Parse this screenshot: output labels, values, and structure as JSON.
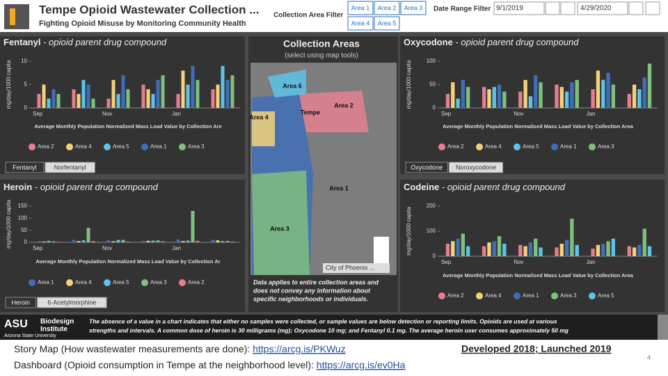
{
  "header": {
    "title": "Tempe Opioid Wastewater Collection ...",
    "subtitle": "Fighting Opioid Misuse by Monitoring Community Health",
    "area_filter_label": "Collection Area Filter",
    "area_buttons": [
      "Area 1",
      "Area 2",
      "Area 3",
      "Area 4",
      "Area 5"
    ],
    "date_filter_label": "Date Range Filter",
    "start_date": "9/1/2019",
    "end_date": "4/29/2020"
  },
  "chart_data": [
    {
      "type": "bar",
      "title": "Fentanyl",
      "title_suffix": "- opioid parent drug compound",
      "y_label": "mg/day/1000 capita",
      "x_label": "Average Monthly Population Normalized Mass Load Value by Collection Are",
      "categories": [
        "Sep",
        null,
        "Nov",
        null,
        "Jan",
        null
      ],
      "ylim": [
        0,
        10
      ],
      "yticks": [
        0,
        5,
        10
      ],
      "series": [
        {
          "name": "Area 2",
          "color": "#e57f8f",
          "values": [
            3,
            4,
            2,
            5,
            3,
            4
          ]
        },
        {
          "name": "Area 4",
          "color": "#f4d27a",
          "values": [
            5,
            3,
            6,
            4,
            8,
            5
          ]
        },
        {
          "name": "Area 5",
          "color": "#5cc3ea",
          "values": [
            2,
            6,
            3,
            3,
            5,
            9
          ]
        },
        {
          "name": "Area 1",
          "color": "#3f6fb8",
          "values": [
            4,
            5,
            7,
            6,
            9,
            6
          ]
        },
        {
          "name": "Area 3",
          "color": "#7fc07d",
          "values": [
            3,
            2,
            4,
            7,
            6,
            7
          ]
        }
      ],
      "tabs": [
        "Fentanyl",
        "Norfentanyl"
      ]
    },
    {
      "type": "bar",
      "title": "Oxycodone",
      "title_suffix": "- opioid parent drug compound",
      "y_label": "mg/day/1000 capita",
      "x_label": "Average Monthly Population Normalized Mass Load Value by Collection Area",
      "categories": [
        "Sep",
        null,
        "Nov",
        null,
        "Jan",
        null
      ],
      "ylim": [
        0,
        100
      ],
      "yticks": [
        0,
        50,
        100
      ],
      "series": [
        {
          "name": "Area 2",
          "color": "#e57f8f",
          "values": [
            30,
            45,
            35,
            50,
            40,
            30
          ]
        },
        {
          "name": "Area 4",
          "color": "#f4d27a",
          "values": [
            55,
            40,
            60,
            45,
            80,
            50
          ]
        },
        {
          "name": "Area 5",
          "color": "#5cc3ea",
          "values": [
            20,
            45,
            25,
            35,
            60,
            40
          ]
        },
        {
          "name": "Area 1",
          "color": "#3f6fb8",
          "values": [
            60,
            50,
            70,
            55,
            75,
            65
          ]
        },
        {
          "name": "Area 3",
          "color": "#7fc07d",
          "values": [
            45,
            35,
            55,
            60,
            50,
            95
          ]
        }
      ],
      "tabs": [
        "Oxycodone",
        "Noroxycodone"
      ]
    },
    {
      "type": "bar",
      "title": "Heroin",
      "title_suffix": "- opioid parent drug compound",
      "y_label": "mg/day/1000 capita",
      "x_label": "Average Monthly Population Normalized Mass Load Value by Collection Ar",
      "categories": [
        "Sep",
        null,
        "Nov",
        null,
        "Jan",
        null
      ],
      "ylim": [
        0,
        150
      ],
      "yticks": [
        0,
        50,
        100,
        150
      ],
      "series": [
        {
          "name": "Area 1",
          "color": "#3f6fb8",
          "values": [
            5,
            10,
            8,
            6,
            12,
            10
          ]
        },
        {
          "name": "Area 4",
          "color": "#f4d27a",
          "values": [
            3,
            5,
            4,
            6,
            5,
            8
          ]
        },
        {
          "name": "Area 5",
          "color": "#5cc3ea",
          "values": [
            6,
            8,
            10,
            7,
            7,
            5
          ]
        },
        {
          "name": "Area 3",
          "color": "#7fc07d",
          "values": [
            4,
            60,
            10,
            8,
            130,
            6
          ]
        },
        {
          "name": "Area 2",
          "color": "#e57f8f",
          "values": [
            2,
            5,
            3,
            4,
            6,
            3
          ]
        }
      ],
      "tabs": [
        "Heroin",
        "6-Acetylmorphine"
      ]
    },
    {
      "type": "bar",
      "title": "Codeine",
      "title_suffix": "- opioid parent drug compound",
      "y_label": "mg/day/1000 capita",
      "x_label": "Average Monthly Population Normalized Mass Load Value by Collection Area",
      "categories": [
        "Sep",
        null,
        "Nov",
        null,
        "Jan",
        null
      ],
      "ylim": [
        0,
        200
      ],
      "yticks": [
        0,
        100,
        200
      ],
      "series": [
        {
          "name": "Area 2",
          "color": "#e57f8f",
          "values": [
            50,
            40,
            45,
            35,
            30,
            40
          ]
        },
        {
          "name": "Area 4",
          "color": "#f4d27a",
          "values": [
            60,
            55,
            40,
            50,
            45,
            35
          ]
        },
        {
          "name": "Area 1",
          "color": "#3f6fb8",
          "values": [
            70,
            60,
            55,
            65,
            50,
            45
          ]
        },
        {
          "name": "Area 3",
          "color": "#7fc07d",
          "values": [
            90,
            80,
            70,
            150,
            60,
            110
          ]
        },
        {
          "name": "Area 5",
          "color": "#5cc3ea",
          "values": [
            40,
            50,
            35,
            45,
            70,
            40
          ]
        }
      ]
    }
  ],
  "map": {
    "title": "Collection Areas",
    "subtitle": "(select using map tools)",
    "labels": [
      "Area 6",
      "Area 2",
      "Area 4",
      "Tempe",
      "Area 1",
      "Area 3"
    ],
    "attribution": "City of Phoenix ...",
    "note": [
      "Data applies to entire collection areas and",
      "does not convey any information about",
      "specific neighborhoods or individuals."
    ]
  },
  "footer": {
    "org": "Biodesign",
    "org2": "Institute",
    "university": "Arizona State University",
    "text": [
      "The absence of a value in a chart indicates that either no samples were collected, or sample values are below detection or reporting limits. Opioids are used at various",
      "strengths and intervals. A common dose of heroin is 30 milligrams (mg); Oxycodone 10 mg; and Fentanyl 0.1 mg. The average heroin user consumes approximately 50 mg"
    ]
  },
  "slide": {
    "line1": "Story Map (How wastewater measurements are done): ",
    "link1": "https://arcg.is/PKWuz",
    "dates": "Developed 2018; Launched 2019",
    "line2": "Dashboard (Opioid consumption in Tempe at the neighborhood level): ",
    "link2": "https://arcg.is/ev0Ha",
    "page": "4"
  }
}
